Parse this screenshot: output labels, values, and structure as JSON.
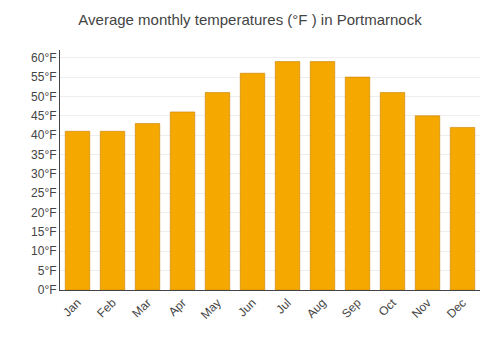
{
  "chart_data": {
    "type": "bar",
    "title": "Average monthly temperatures (°F ) in Portmarnock",
    "categories": [
      "Jan",
      "Feb",
      "Mar",
      "Apr",
      "May",
      "Jun",
      "Jul",
      "Aug",
      "Sep",
      "Oct",
      "Nov",
      "Dec"
    ],
    "values": [
      41,
      41,
      43,
      46,
      51,
      56,
      59,
      59,
      55,
      51,
      45,
      42
    ],
    "color": "#F5A800",
    "ylim": [
      0,
      62
    ],
    "yticks": [
      {
        "value": 0,
        "label": "0°F"
      },
      {
        "value": 5,
        "label": "5°F"
      },
      {
        "value": 10,
        "label": "10°F"
      },
      {
        "value": 15,
        "label": "15°F"
      },
      {
        "value": 20,
        "label": "20°F"
      },
      {
        "value": 25,
        "label": "25°F"
      },
      {
        "value": 30,
        "label": "30°F"
      },
      {
        "value": 35,
        "label": "35°F"
      },
      {
        "value": 40,
        "label": "40°F"
      },
      {
        "value": 45,
        "label": "45°F"
      },
      {
        "value": 50,
        "label": "50°F"
      },
      {
        "value": 55,
        "label": "55°F"
      },
      {
        "value": 60,
        "label": "60°F"
      }
    ],
    "grid": true
  }
}
